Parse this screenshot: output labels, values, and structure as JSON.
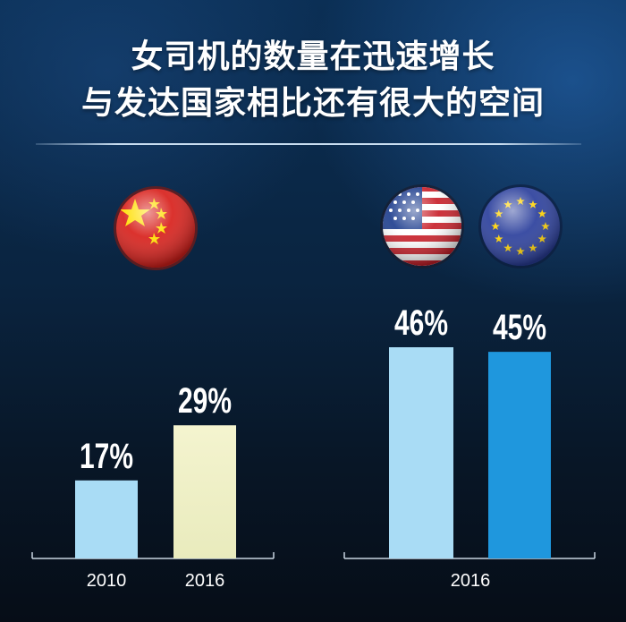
{
  "title_lines": [
    "女司机的数量在迅速增长",
    "与发达国家相比还有很大的空间"
  ],
  "colors": {
    "bar_china_2010": "#a9dcf5",
    "bar_china_2016": "#f1f1c8",
    "bar_usa": "#a9dcf5",
    "bar_eu": "#1f97dd",
    "axis": "#c9d6e2"
  },
  "icons": {
    "china": "china-flag-icon",
    "usa": "usa-flag-icon",
    "eu": "eu-flag-icon"
  },
  "chart_data": [
    {
      "type": "bar",
      "group": "china",
      "categories": [
        "2010",
        "2016"
      ],
      "values": [
        17,
        29
      ],
      "labels": [
        "17%",
        "29%"
      ],
      "ylim": [
        0,
        50
      ]
    },
    {
      "type": "bar",
      "group": "usa-eu",
      "categories": [
        "2016"
      ],
      "series": [
        {
          "values": [
            46
          ],
          "labels": [
            "46%"
          ]
        },
        {
          "values": [
            45
          ],
          "labels": [
            "45%"
          ]
        }
      ],
      "ylim": [
        0,
        50
      ]
    }
  ]
}
